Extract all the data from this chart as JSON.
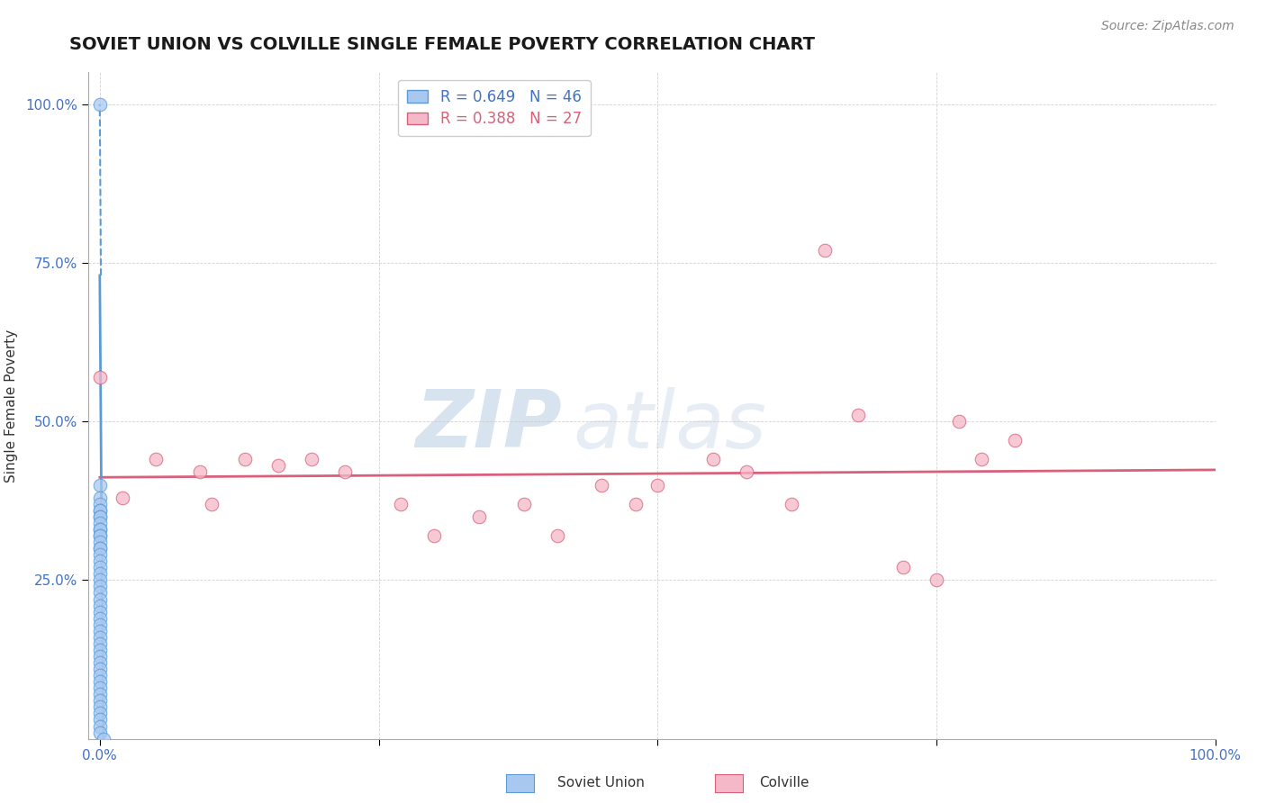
{
  "title": "SOVIET UNION VS COLVILLE SINGLE FEMALE POVERTY CORRELATION CHART",
  "source": "Source: ZipAtlas.com",
  "ylabel": "Single Female Poverty",
  "legend_label1": "Soviet Union",
  "legend_label2": "Colville",
  "R1": 0.649,
  "N1": 46,
  "R2": 0.388,
  "N2": 27,
  "color_blue": "#a8c8f0",
  "color_blue_dark": "#5b9bd5",
  "color_pink": "#f4b8c8",
  "color_pink_dark": "#d9607a",
  "watermark_color": "#ccddf0",
  "background_color": "#ffffff",
  "grid_color": "#cccccc",
  "soviet_x": [
    0.0,
    0.0,
    0.0,
    0.0,
    0.0,
    0.0,
    0.0,
    0.0,
    0.0,
    0.0,
    0.0,
    0.0,
    0.0,
    0.0,
    0.0,
    0.0,
    0.0,
    0.0,
    0.0,
    0.0,
    0.0,
    0.0,
    0.0,
    0.0,
    0.0,
    0.0,
    0.0,
    0.0,
    0.0,
    0.0,
    0.0,
    0.0,
    0.0,
    0.0,
    0.0,
    0.0,
    0.0,
    0.0,
    0.0,
    0.0,
    0.0,
    0.0,
    0.0,
    0.0,
    0.0,
    0.003
  ],
  "soviet_y": [
    1.0,
    0.4,
    0.38,
    0.37,
    0.36,
    0.36,
    0.35,
    0.35,
    0.34,
    0.33,
    0.33,
    0.32,
    0.32,
    0.31,
    0.3,
    0.3,
    0.29,
    0.28,
    0.27,
    0.26,
    0.25,
    0.24,
    0.23,
    0.22,
    0.21,
    0.2,
    0.19,
    0.18,
    0.17,
    0.16,
    0.15,
    0.14,
    0.13,
    0.12,
    0.11,
    0.1,
    0.09,
    0.08,
    0.07,
    0.06,
    0.05,
    0.04,
    0.03,
    0.02,
    0.01,
    0.0
  ],
  "colville_x": [
    0.0,
    0.02,
    0.05,
    0.09,
    0.1,
    0.13,
    0.16,
    0.19,
    0.22,
    0.27,
    0.3,
    0.34,
    0.38,
    0.41,
    0.45,
    0.48,
    0.5,
    0.55,
    0.58,
    0.62,
    0.65,
    0.68,
    0.72,
    0.75,
    0.77,
    0.79,
    0.82
  ],
  "colville_y": [
    0.57,
    0.38,
    0.44,
    0.42,
    0.37,
    0.44,
    0.43,
    0.44,
    0.42,
    0.37,
    0.32,
    0.35,
    0.37,
    0.32,
    0.4,
    0.37,
    0.4,
    0.44,
    0.42,
    0.37,
    0.77,
    0.51,
    0.27,
    0.25,
    0.5,
    0.44,
    0.47
  ],
  "xlim": [
    0.0,
    1.0
  ],
  "ylim": [
    0.0,
    1.0
  ],
  "x_ticks": [
    0.0,
    0.25,
    0.5,
    0.75,
    1.0
  ],
  "y_ticks": [
    0.25,
    0.5,
    0.75,
    1.0
  ],
  "axis_color": "#4472c4",
  "title_fontsize": 14,
  "tick_fontsize": 11,
  "source_fontsize": 10,
  "legend_fontsize": 12
}
